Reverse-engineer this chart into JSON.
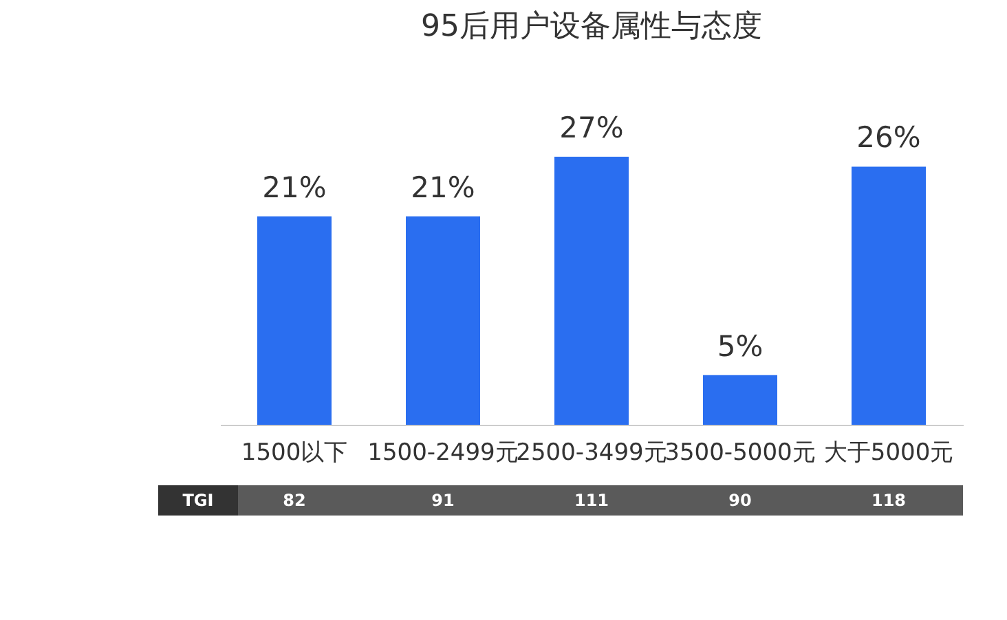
{
  "chart_data": {
    "type": "bar",
    "title": "95后用户设备属性与态度",
    "categories": [
      "1500以下",
      "1500-2499元",
      "2500-3499元",
      "3500-5000元",
      "大于5000元"
    ],
    "values": [
      21,
      21,
      27,
      5,
      26
    ],
    "color": "#2a6ef0",
    "value_labels": [
      "21%",
      "21%",
      "27%",
      "5%",
      "26%"
    ],
    "annotations": [
      "TGI",
      "82",
      "91",
      "111",
      "90",
      "118"
    ]
  }
}
